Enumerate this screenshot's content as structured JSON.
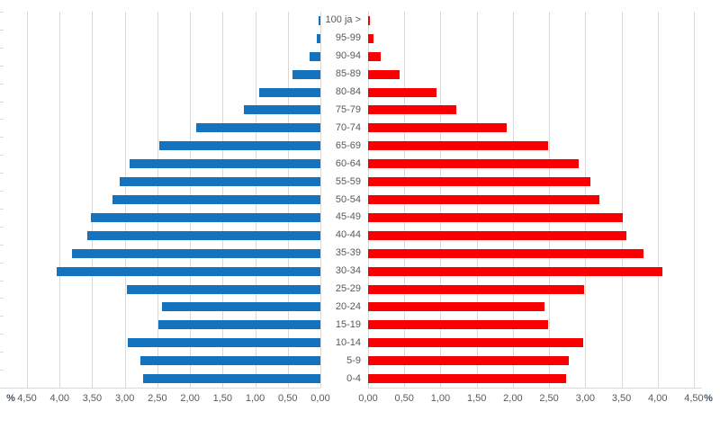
{
  "chart_data": {
    "type": "bar",
    "variant": "population_pyramid",
    "title": "",
    "legend": "none",
    "gridlines": "vertical, every 0.50 percent, light gray",
    "categories_top_to_bottom": [
      "100 ja >",
      "95-99",
      "90-94",
      "85-89",
      "80-84",
      "75-79",
      "70-74",
      "65-69",
      "60-64",
      "55-59",
      "50-54",
      "45-49",
      "40-44",
      "35-39",
      "30-34",
      "25-29",
      "20-24",
      "15-19",
      "10-14",
      "5-9",
      "0-4"
    ],
    "series": [
      {
        "name": "left-side-blue",
        "side": "left",
        "color": "#1572bf",
        "values_pct": [
          0.03,
          0.06,
          0.16,
          0.43,
          0.94,
          1.17,
          1.9,
          2.47,
          2.92,
          3.08,
          3.19,
          3.52,
          3.57,
          3.81,
          4.05,
          2.97,
          2.43,
          2.48,
          2.96,
          2.76,
          2.72
        ]
      },
      {
        "name": "right-side-red",
        "side": "right",
        "color": "#f80000",
        "values_pct": [
          0.03,
          0.07,
          0.17,
          0.44,
          0.95,
          1.22,
          1.91,
          2.49,
          2.91,
          3.07,
          3.19,
          3.52,
          3.57,
          3.81,
          4.06,
          2.98,
          2.44,
          2.49,
          2.97,
          2.77,
          2.74
        ]
      }
    ],
    "x_axis": {
      "min": 0,
      "max": 4.5,
      "step": 0.5,
      "decimal_separator": ",",
      "unit_label": "%",
      "left_tick_labels": [
        "4,50",
        "4,00",
        "3,50",
        "3,00",
        "2,50",
        "2,00",
        "1,50",
        "1,00",
        "0,50",
        "0,00"
      ],
      "right_tick_labels": [
        "0,00",
        "0,50",
        "1,00",
        "1,50",
        "2,00",
        "2,50",
        "3,00",
        "3,50",
        "4,00",
        "4,50"
      ]
    }
  },
  "colors": {
    "background": "#ffffff",
    "bar_left": "#1572bf",
    "bar_right": "#f80000",
    "gridline": "#d9d9d9",
    "axis_text": "#595959",
    "unit_text": "#44546a"
  }
}
